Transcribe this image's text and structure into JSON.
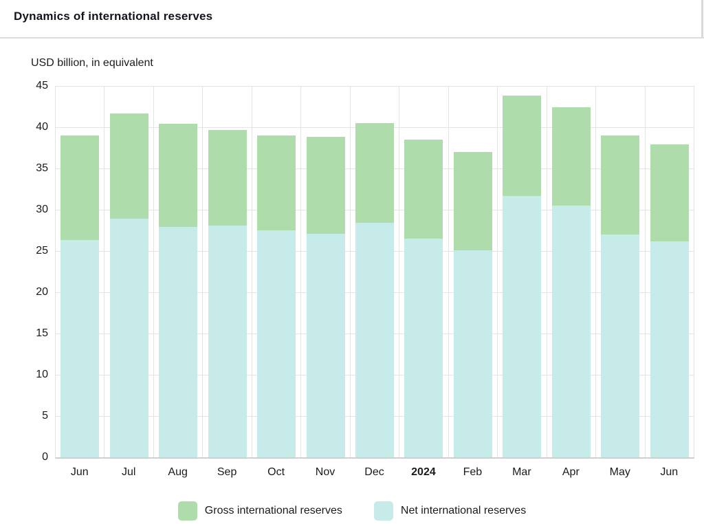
{
  "header": {
    "title": "Dynamics of international reserves"
  },
  "chart": {
    "subtitle": "USD billion, in equivalent"
  },
  "colors": {
    "gross": "#aedcab",
    "net": "#c6ebe8",
    "gridline": "#e3e3e3"
  },
  "chart_data": {
    "type": "bar",
    "variant": "overlay-stacked",
    "title": "Dynamics of international reserves",
    "units": "USD billion, in equivalent",
    "categories": [
      "Jun",
      "Jul",
      "Aug",
      "Sep",
      "Oct",
      "Nov",
      "Dec",
      "2024",
      "Feb",
      "Mar",
      "Apr",
      "May",
      "Jun"
    ],
    "bold_category_index": 7,
    "series": [
      {
        "name": "Gross international reserves",
        "color": "#aedcab",
        "values": [
          39.0,
          41.7,
          40.4,
          39.7,
          39.0,
          38.8,
          40.5,
          38.5,
          37.0,
          43.8,
          42.4,
          39.0,
          37.9
        ]
      },
      {
        "name": "Net international reserves",
        "color": "#c6ebe8",
        "values": [
          26.3,
          28.9,
          27.9,
          28.1,
          27.5,
          27.1,
          28.4,
          26.5,
          25.1,
          31.7,
          30.5,
          27.0,
          26.2
        ]
      }
    ],
    "ylim": [
      0,
      45
    ],
    "yticks": [
      0,
      5,
      10,
      15,
      20,
      25,
      30,
      35,
      40,
      45
    ],
    "grid": true,
    "legend_position": "bottom",
    "legend": [
      "Gross international reserves",
      "Net international reserves"
    ]
  }
}
